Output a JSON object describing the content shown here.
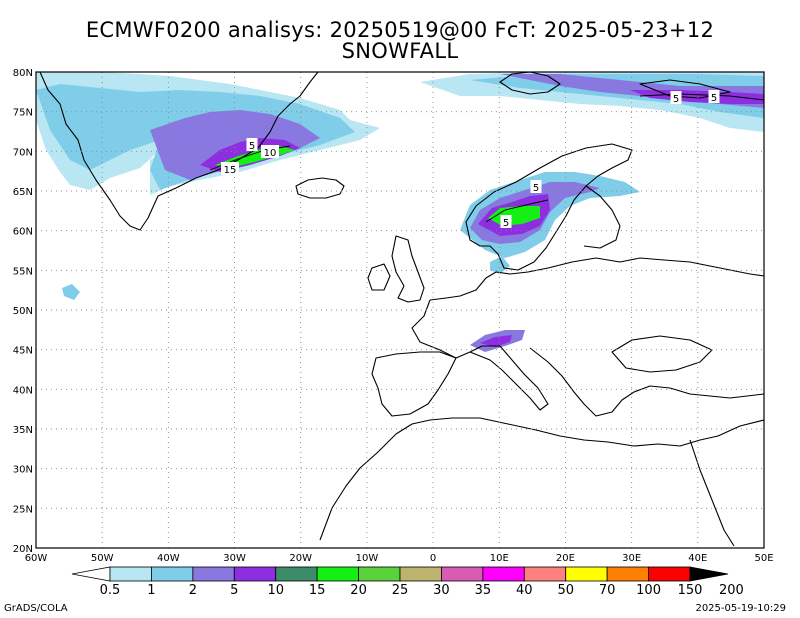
{
  "title": {
    "line1": "ECMWF0200 analisys: 20250519@00 FcT: 2025-05-23+12",
    "line2": "SNOWFALL"
  },
  "axes": {
    "lat_labels": [
      "80N",
      "75N",
      "70N",
      "65N",
      "60N",
      "55N",
      "50N",
      "45N",
      "40N",
      "35N",
      "30N",
      "25N",
      "20N"
    ],
    "lon_labels": [
      "60W",
      "50W",
      "40W",
      "30W",
      "20W",
      "10W",
      "0",
      "10E",
      "20E",
      "30E",
      "40E",
      "50E"
    ]
  },
  "contour_labels": [
    {
      "text": "5",
      "region": "Greenland east coast"
    },
    {
      "text": "10",
      "region": "Greenland east coast"
    },
    {
      "text": "15",
      "region": "Greenland east coast"
    },
    {
      "text": "5",
      "region": "Barents Sea"
    },
    {
      "text": "5",
      "region": "Barents Sea"
    },
    {
      "text": "5",
      "region": "Northern Scandinavia"
    },
    {
      "text": "5",
      "region": "Southern Norway"
    }
  ],
  "colorbar": {
    "labels": [
      "0.5",
      "1",
      "2",
      "5",
      "10",
      "15",
      "20",
      "25",
      "30",
      "35",
      "40",
      "50",
      "70",
      "100",
      "150",
      "200"
    ],
    "colors": [
      "#b9e6f3",
      "#80cde9",
      "#8878e0",
      "#8d2ee0",
      "#3c8c6c",
      "#14f014",
      "#5ad23c",
      "#bcb46e",
      "#d85cb4",
      "#ff00ff",
      "#ff8080",
      "#ffff00",
      "#ff8000",
      "#ff0000",
      "#8b0000",
      "#000000"
    ]
  },
  "footer": {
    "left": "GrADS/COLA",
    "right": "2025-05-19-10:29"
  }
}
